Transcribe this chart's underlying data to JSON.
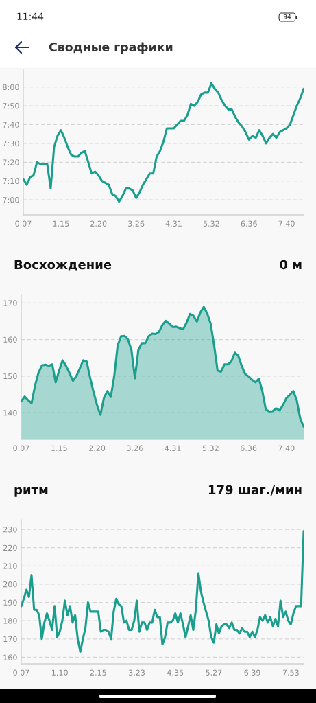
{
  "chart_data": [
    {
      "type": "line",
      "title": "Сводные графики",
      "annotations": [
        "11:44",
        "94"
      ],
      "categories": [
        "0.07",
        null,
        null,
        null,
        null,
        null,
        null,
        null,
        null,
        null,
        null,
        "1.15",
        null,
        null,
        null,
        null,
        null,
        null,
        null,
        null,
        null,
        null,
        "2.20",
        null,
        null,
        null,
        null,
        null,
        null,
        null,
        null,
        null,
        null,
        "3.26",
        null,
        null,
        null,
        null,
        null,
        null,
        null,
        null,
        null,
        null,
        "4.31",
        null,
        null,
        null,
        null,
        null,
        null,
        null,
        null,
        null,
        null,
        "5.32",
        null,
        null,
        null,
        null,
        null,
        null,
        null,
        null,
        null,
        null,
        "6.36",
        null,
        null,
        null,
        null,
        null,
        null,
        null,
        null,
        null,
        null,
        "7.40",
        null,
        null,
        null,
        null,
        null
      ],
      "values": [
        431,
        428,
        432,
        433,
        440,
        439,
        439,
        439,
        426,
        448,
        454,
        457,
        453,
        448,
        444,
        443,
        443,
        445,
        446,
        440,
        434,
        435,
        433,
        430,
        429,
        428,
        423,
        422,
        419,
        422,
        426,
        426,
        425,
        421,
        424,
        428,
        431,
        434,
        434,
        443,
        446,
        451,
        458,
        458,
        458,
        460,
        462,
        462,
        465,
        471,
        470,
        472,
        476,
        477,
        477,
        482,
        479,
        477,
        473,
        470,
        468,
        468,
        464,
        461,
        459,
        456,
        452,
        454,
        453,
        457,
        454,
        450,
        453,
        455,
        453,
        456,
        457,
        458,
        460,
        465,
        470,
        474,
        479
      ],
      "color": "#1a9e8e",
      "ylim": [
        412,
        489
      ],
      "yticks": [
        {
          "value": 420,
          "label": "7:00"
        },
        {
          "value": 430,
          "label": "7:10"
        },
        {
          "value": 440,
          "label": "7:20"
        },
        {
          "value": 450,
          "label": "7:30"
        },
        {
          "value": 460,
          "label": "7:40"
        },
        {
          "value": 470,
          "label": "7:50"
        },
        {
          "value": 480,
          "label": "8:00"
        }
      ],
      "grid": "y"
    },
    {
      "type": "area",
      "title": "Восхождение",
      "subtitle": "0 м",
      "categories": [
        "0.07",
        null,
        null,
        null,
        null,
        null,
        null,
        null,
        null,
        null,
        null,
        "1.15",
        null,
        null,
        null,
        null,
        null,
        null,
        null,
        null,
        null,
        null,
        "2.20",
        null,
        null,
        null,
        null,
        null,
        null,
        null,
        null,
        null,
        null,
        "3.26",
        null,
        null,
        null,
        null,
        null,
        null,
        null,
        null,
        null,
        null,
        "4.31",
        null,
        null,
        null,
        null,
        null,
        null,
        null,
        null,
        null,
        null,
        "5.32",
        null,
        null,
        null,
        null,
        null,
        null,
        null,
        null,
        null,
        null,
        "6.36",
        null,
        null,
        null,
        null,
        null,
        null,
        null,
        null,
        null,
        null,
        "7.40",
        null,
        null,
        null,
        null,
        null
      ],
      "values": [
        143.1,
        144.4,
        143.4,
        142.6,
        147.4,
        150.9,
        152.9,
        153.1,
        152.8,
        153.2,
        148.3,
        151.5,
        154.3,
        152.8,
        150.9,
        148.7,
        150.0,
        152.1,
        154.3,
        154.0,
        149.6,
        145.6,
        142.1,
        139.4,
        144.0,
        145.9,
        144.3,
        150.0,
        158.4,
        160.9,
        161.0,
        160.0,
        157.1,
        149.4,
        157.1,
        159.0,
        159.0,
        160.9,
        161.6,
        161.5,
        162.1,
        164.0,
        165.1,
        164.3,
        163.4,
        163.5,
        163.1,
        162.8,
        164.6,
        167.0,
        166.5,
        164.9,
        167.4,
        168.9,
        167.1,
        164.3,
        158.4,
        151.5,
        151.2,
        153.2,
        153.2,
        154.0,
        156.4,
        155.6,
        152.8,
        150.6,
        149.9,
        149.0,
        148.3,
        149.3,
        145.9,
        140.9,
        140.3,
        140.4,
        141.2,
        140.6,
        142.1,
        144.0,
        144.9,
        145.9,
        143.4,
        138.4,
        136.2
      ],
      "color": "#1a9e8e",
      "ylim": [
        132.7,
        172.3
      ],
      "yticks": [
        140,
        150,
        160,
        170
      ],
      "grid": "y"
    },
    {
      "type": "line",
      "title": "ритм",
      "subtitle": "179 шаг./мин",
      "categories": [
        "0.07",
        null,
        null,
        null,
        null,
        null,
        null,
        null,
        null,
        null,
        null,
        null,
        null,
        null,
        null,
        "1,10",
        null,
        null,
        null,
        null,
        null,
        null,
        null,
        null,
        null,
        null,
        null,
        null,
        null,
        null,
        "2.15",
        null,
        null,
        null,
        null,
        null,
        null,
        null,
        null,
        null,
        null,
        null,
        null,
        null,
        null,
        "3,23",
        null,
        null,
        null,
        null,
        null,
        null,
        null,
        null,
        null,
        null,
        null,
        null,
        null,
        null,
        "4.35",
        null,
        null,
        null,
        null,
        null,
        null,
        null,
        null,
        null,
        null,
        null,
        null,
        null,
        null,
        "5.27",
        null,
        null,
        null,
        null,
        null,
        null,
        null,
        null,
        null,
        null,
        null,
        null,
        null,
        null,
        "6.39",
        null,
        null,
        null,
        null,
        null,
        null,
        null,
        null,
        null,
        null,
        null,
        null,
        null,
        null,
        "7.53",
        null,
        null,
        null,
        null,
        null
      ],
      "values": [
        188,
        192,
        197,
        193,
        205,
        186,
        186,
        183,
        170,
        179,
        184,
        180,
        175,
        188,
        171,
        174,
        180,
        191,
        183,
        188,
        179,
        183,
        170,
        163,
        170,
        176,
        190,
        185,
        185,
        185,
        185,
        174,
        175,
        175,
        174,
        170,
        185,
        192,
        189,
        188,
        179,
        180,
        175,
        175,
        180,
        191,
        174,
        179,
        179,
        175,
        179,
        179,
        186,
        182,
        182,
        167,
        171,
        179,
        179,
        180,
        184,
        179,
        184,
        178,
        171,
        177,
        183,
        175,
        186,
        206,
        196,
        190,
        185,
        180,
        171,
        168,
        178,
        173,
        177,
        178,
        178,
        176,
        179,
        175,
        175,
        173,
        176,
        174,
        174,
        171,
        174,
        171,
        175,
        182,
        180,
        183,
        179,
        182,
        177,
        181,
        177,
        191,
        182,
        185,
        180,
        178,
        184,
        188,
        188,
        188,
        229
      ],
      "color": "#1a9e8e",
      "ylim": [
        156.4,
        235.3
      ],
      "yticks": [
        160,
        170,
        180,
        190,
        200,
        210,
        220,
        230
      ],
      "grid": "y"
    }
  ]
}
